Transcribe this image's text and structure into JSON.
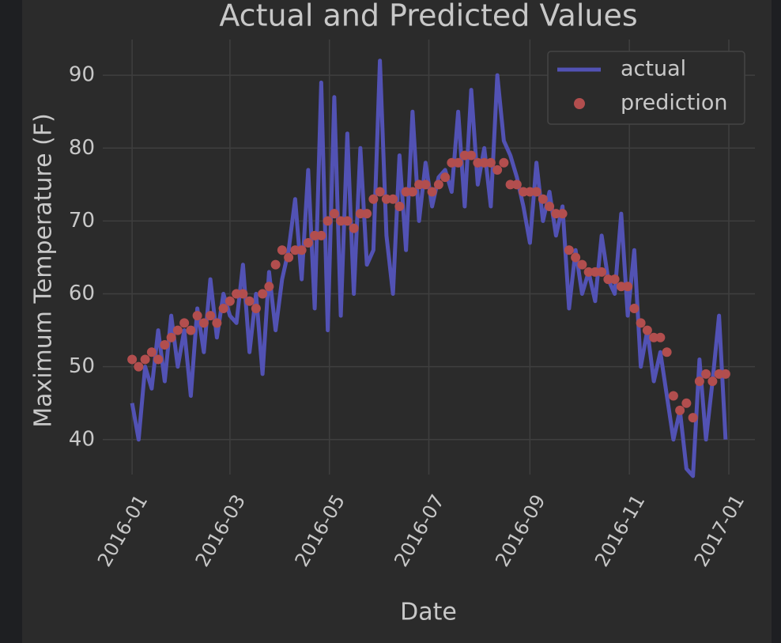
{
  "chart_data": {
    "type": "line",
    "title": "Actual and Predicted Values",
    "xlabel": "Date",
    "ylabel": "Maximum Temperature (F)",
    "x": [
      0,
      4,
      8,
      12,
      16,
      20,
      24,
      28,
      32,
      36,
      40,
      44,
      48,
      52,
      56,
      60,
      64,
      68,
      72,
      76,
      80,
      84,
      88,
      92,
      96,
      100,
      104,
      108,
      112,
      116,
      120,
      124,
      128,
      132,
      136,
      140,
      144,
      148,
      152,
      156,
      160,
      164,
      168,
      172,
      176,
      180,
      184,
      188,
      192,
      196,
      200,
      204,
      208,
      212,
      216,
      220,
      224,
      228,
      232,
      236,
      240,
      244,
      248,
      252,
      256,
      260,
      264,
      268,
      272,
      276,
      280,
      284,
      288,
      292,
      296,
      300,
      304,
      308,
      312,
      316,
      320,
      324,
      328,
      332,
      336,
      340,
      344,
      348,
      352,
      356,
      360,
      364
    ],
    "series": [
      {
        "name": "actual",
        "color": "#5252b4",
        "type": "line",
        "values": [
          45,
          40,
          50,
          47,
          55,
          48,
          57,
          50,
          55,
          46,
          58,
          52,
          62,
          54,
          60,
          57,
          56,
          64,
          52,
          60,
          49,
          63,
          55,
          62,
          66,
          73,
          62,
          77,
          58,
          89,
          55,
          87,
          57,
          82,
          60,
          80,
          64,
          66,
          92,
          68,
          60,
          79,
          66,
          85,
          70,
          78,
          72,
          76,
          77,
          74,
          85,
          72,
          88,
          75,
          80,
          72,
          90,
          81,
          79,
          76,
          72,
          67,
          78,
          70,
          74,
          68,
          72,
          58,
          66,
          60,
          63,
          59,
          68,
          62,
          60,
          71,
          57,
          66,
          50,
          55,
          48,
          52,
          46,
          40,
          44,
          36,
          35,
          51,
          40,
          48,
          57,
          40
        ]
      },
      {
        "name": "prediction",
        "color": "#b24e4e",
        "type": "scatter",
        "values": [
          51,
          50,
          51,
          52,
          51,
          53,
          54,
          55,
          56,
          55,
          57,
          56,
          57,
          56,
          58,
          59,
          60,
          60,
          59,
          58,
          60,
          61,
          64,
          66,
          65,
          66,
          66,
          67,
          68,
          68,
          70,
          71,
          70,
          70,
          69,
          71,
          71,
          73,
          74,
          73,
          73,
          72,
          74,
          74,
          75,
          75,
          74,
          75,
          76,
          78,
          78,
          79,
          79,
          78,
          78,
          78,
          77,
          78,
          75,
          75,
          74,
          74,
          74,
          73,
          72,
          71,
          71,
          66,
          65,
          64,
          63,
          63,
          63,
          62,
          62,
          61,
          61,
          58,
          56,
          55,
          54,
          54,
          52,
          46,
          44,
          45,
          43,
          48,
          49,
          48,
          49,
          49
        ]
      }
    ],
    "xlim": [
      -18,
      382
    ],
    "xticks": [
      {
        "value": 0,
        "label": "2016-01"
      },
      {
        "value": 60,
        "label": "2016-03"
      },
      {
        "value": 121,
        "label": "2016-05"
      },
      {
        "value": 182,
        "label": "2016-07"
      },
      {
        "value": 244,
        "label": "2016-09"
      },
      {
        "value": 305,
        "label": "2016-11"
      },
      {
        "value": 366,
        "label": "2017-01"
      }
    ],
    "ylim": [
      35.2,
      94.9
    ],
    "yticks": [
      40,
      50,
      60,
      70,
      80,
      90
    ],
    "grid": true,
    "legend": "upper right"
  }
}
